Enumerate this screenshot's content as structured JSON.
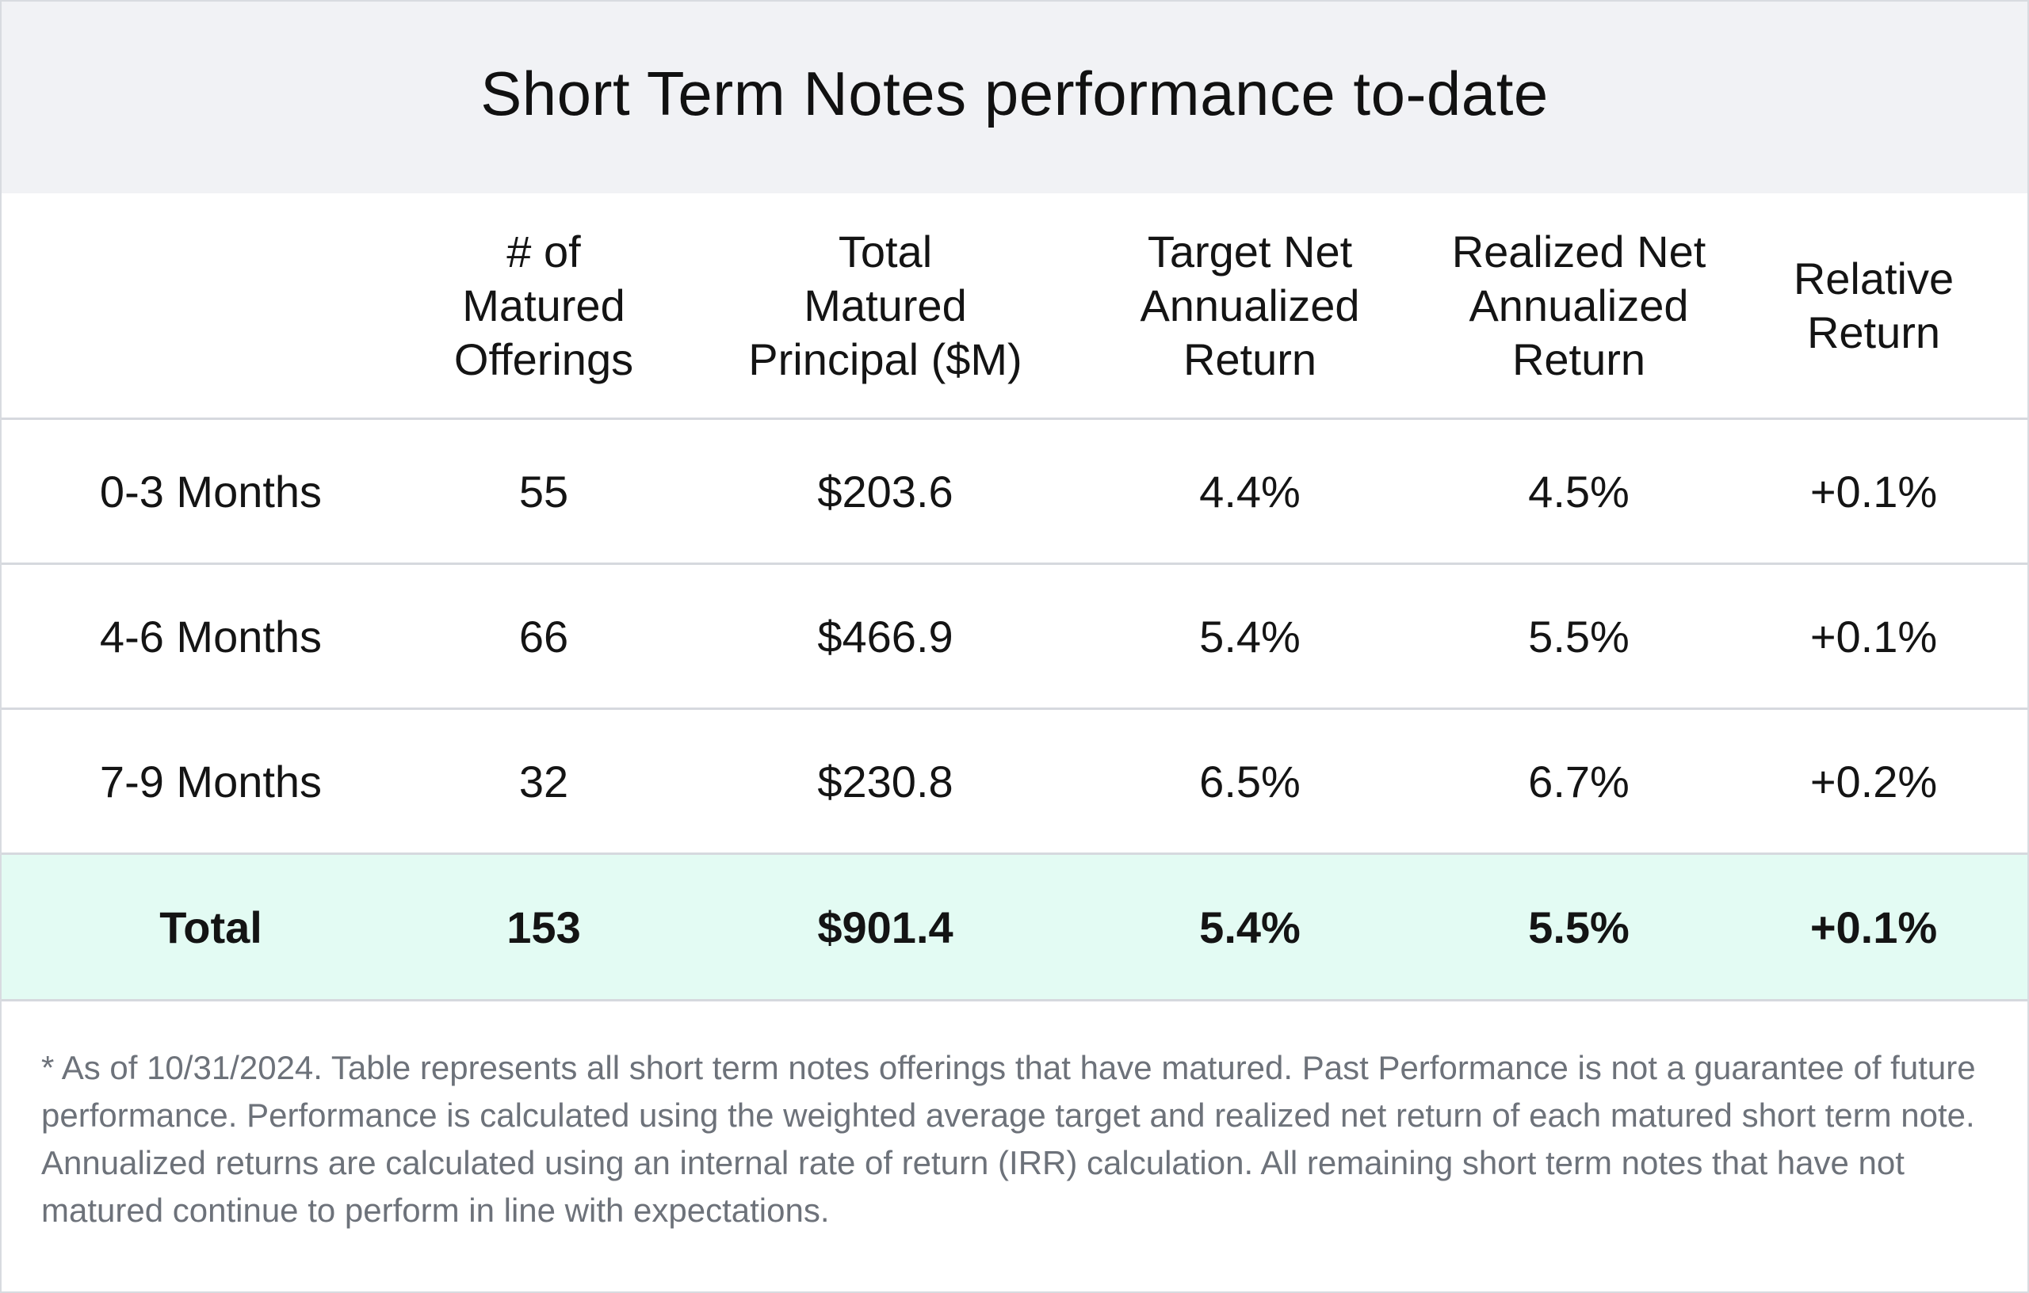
{
  "chart_data": {
    "type": "table",
    "title": "Short Term Notes performance to-date",
    "columns": [
      "",
      "# of Matured\nOfferings",
      "Total\nMatured\nPrincipal ($M)",
      "Target Net\nAnnualized\nReturn",
      "Realized Net\nAnnualized\nReturn",
      "Relative\nReturn"
    ],
    "rows": [
      [
        "0-3 Months",
        "55",
        "$203.6",
        "4.4%",
        "4.5%",
        "+0.1%"
      ],
      [
        "4-6 Months",
        "66",
        "$466.9",
        "5.4%",
        "5.5%",
        "+0.1%"
      ],
      [
        "7-9 Months",
        "32",
        "$230.8",
        "6.5%",
        "6.7%",
        "+0.2%"
      ]
    ],
    "total": [
      "Total",
      "153",
      "$901.4",
      "5.4%",
      "5.5%",
      "+0.1%"
    ],
    "footnote": "* As of 10/31/2024. Table represents all short term notes offerings that have matured. Past Performance is not a guarantee of future performance. Performance is calculated using the weighted average target and realized net return of each matured short term note. Annualized returns are calculated using an internal rate of return (IRR) calculation. All remaining short term notes that have not matured continue to perform in line with expectations."
  },
  "colors": {
    "title_background": "#f1f2f5",
    "total_row_background": "#e3fbf3",
    "divider": "#d6d9de",
    "text": "#141414",
    "footnote_text": "#6d727a"
  }
}
